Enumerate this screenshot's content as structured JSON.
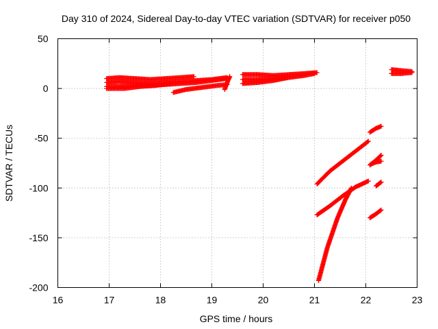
{
  "chart_data": {
    "type": "scatter",
    "title": "Day 310 of 2024, Sidereal Day-to-day VTEC variation (SDTVAR) for receiver p050",
    "xlabel": "GPS time / hours",
    "ylabel": "SDTVAR / TECUs",
    "xlim": [
      16,
      23
    ],
    "ylim": [
      -200,
      50
    ],
    "xticks": [
      16,
      17,
      18,
      19,
      20,
      21,
      22,
      23
    ],
    "yticks": [
      -200,
      -150,
      -100,
      -50,
      0,
      50
    ],
    "grid": true,
    "marker": "plus",
    "color": "#ff0000",
    "series": [
      {
        "segments": [
          {
            "x": [
              16.95,
              17.2,
              17.5,
              17.8,
              18.1,
              18.4,
              18.65
            ],
            "y": [
              10,
              11,
              10,
              9,
              10,
              11,
              12
            ]
          },
          {
            "x": [
              16.95,
              17.2,
              17.5,
              17.8,
              18.1,
              18.4,
              18.7,
              19.0,
              19.3
            ],
            "y": [
              2,
              2,
              3,
              3,
              4,
              5,
              6,
              8,
              10
            ]
          },
          {
            "x": [
              16.95,
              17.2,
              17.5,
              17.8,
              18.1,
              18.4,
              18.7,
              19.0,
              19.3
            ],
            "y": [
              6,
              7,
              6,
              5,
              6,
              7,
              8,
              9,
              11
            ]
          },
          {
            "x": [
              16.95,
              17.3,
              17.6,
              17.9,
              18.2
            ],
            "y": [
              0,
              0,
              2,
              3,
              5
            ]
          },
          {
            "x": [
              18.25,
              18.5,
              18.8,
              19.1,
              19.3
            ],
            "y": [
              -4,
              -1,
              1,
              3,
              4
            ]
          },
          {
            "x": [
              19.25,
              19.3,
              19.35
            ],
            "y": [
              -1,
              6,
              12
            ]
          },
          {
            "x": [
              19.6,
              19.9,
              20.2,
              20.5,
              20.8,
              21.05
            ],
            "y": [
              14,
              14,
              13,
              14,
              15,
              16
            ]
          },
          {
            "x": [
              19.6,
              19.9,
              20.2,
              20.5,
              20.8,
              21.0
            ],
            "y": [
              5,
              6,
              8,
              11,
              13,
              15
            ]
          },
          {
            "x": [
              19.6,
              19.9,
              20.2,
              20.45
            ],
            "y": [
              9,
              9,
              10,
              11
            ]
          },
          {
            "x": [
              22.5,
              22.7,
              22.9
            ],
            "y": [
              19,
              18,
              17
            ]
          },
          {
            "x": [
              22.5,
              22.7,
              22.9
            ],
            "y": [
              15,
              15,
              16
            ]
          },
          {
            "x": [
              21.05,
              21.3,
              21.6,
              21.85,
              22.05
            ],
            "y": [
              -96,
              -83,
              -71,
              -61,
              -53
            ]
          },
          {
            "x": [
              21.05,
              21.3,
              21.55,
              21.8,
              22.05
            ],
            "y": [
              -127,
              -118,
              -108,
              -99,
              -93
            ]
          },
          {
            "x": [
              21.08,
              21.25,
              21.45,
              21.6,
              21.72
            ],
            "y": [
              -193,
              -160,
              -130,
              -112,
              -100
            ]
          },
          {
            "x": [
              22.08,
              22.2,
              22.3
            ],
            "y": [
              -44,
              -40,
              -38
            ]
          },
          {
            "x": [
              22.08,
              22.2,
              22.3
            ],
            "y": [
              -77,
              -72,
              -67
            ]
          },
          {
            "x": [
              22.1,
              22.2,
              22.3
            ],
            "y": [
              -76,
              -74,
              -73
            ]
          },
          {
            "x": [
              22.2,
              22.25,
              22.3
            ],
            "y": [
              -98,
              -96,
              -94
            ]
          },
          {
            "x": [
              22.08,
              22.2,
              22.3
            ],
            "y": [
              -130,
              -126,
              -122
            ]
          }
        ]
      }
    ]
  }
}
